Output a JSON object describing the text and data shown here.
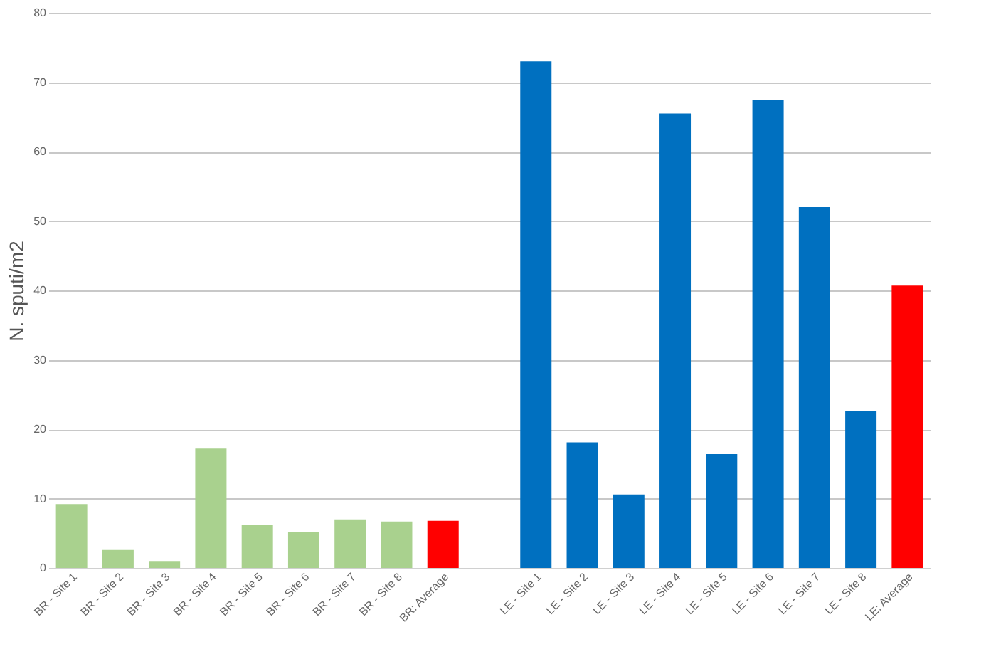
{
  "chart_data": {
    "type": "bar",
    "ylabel": "N. sputi/m2",
    "categories": [
      "BR - Site 1",
      "BR - Site 2",
      "BR - Site 3",
      "BR - Site 4",
      "BR - Site 5",
      "BR - Site 6",
      "BR - Site 7",
      "BR - Site 8",
      "BR: Average",
      null,
      "LE - Site 1",
      "LE - Site 2",
      "LE - Site 3",
      "LE - Site 4",
      "LE - Site 5",
      "LE - Site 6",
      "LE - Site 7",
      "LE - Site 8",
      "LE: Average"
    ],
    "values": [
      9.2,
      2.6,
      1.0,
      17.2,
      6.2,
      5.2,
      7.0,
      6.7,
      6.8,
      null,
      73.0,
      18.1,
      10.6,
      65.5,
      16.4,
      67.4,
      52.0,
      22.6,
      40.7
    ],
    "colors": [
      "#a9d18e",
      "#a9d18e",
      "#a9d18e",
      "#a9d18e",
      "#a9d18e",
      "#a9d18e",
      "#a9d18e",
      "#a9d18e",
      "#ff0000",
      "#ffffff",
      "#0070c0",
      "#0070c0",
      "#0070c0",
      "#0070c0",
      "#0070c0",
      "#0070c0",
      "#0070c0",
      "#0070c0",
      "#ff0000"
    ],
    "ylim": [
      0,
      80
    ],
    "yticks": [
      0,
      10,
      20,
      30,
      40,
      50,
      60,
      70,
      80
    ],
    "grid": "y"
  }
}
